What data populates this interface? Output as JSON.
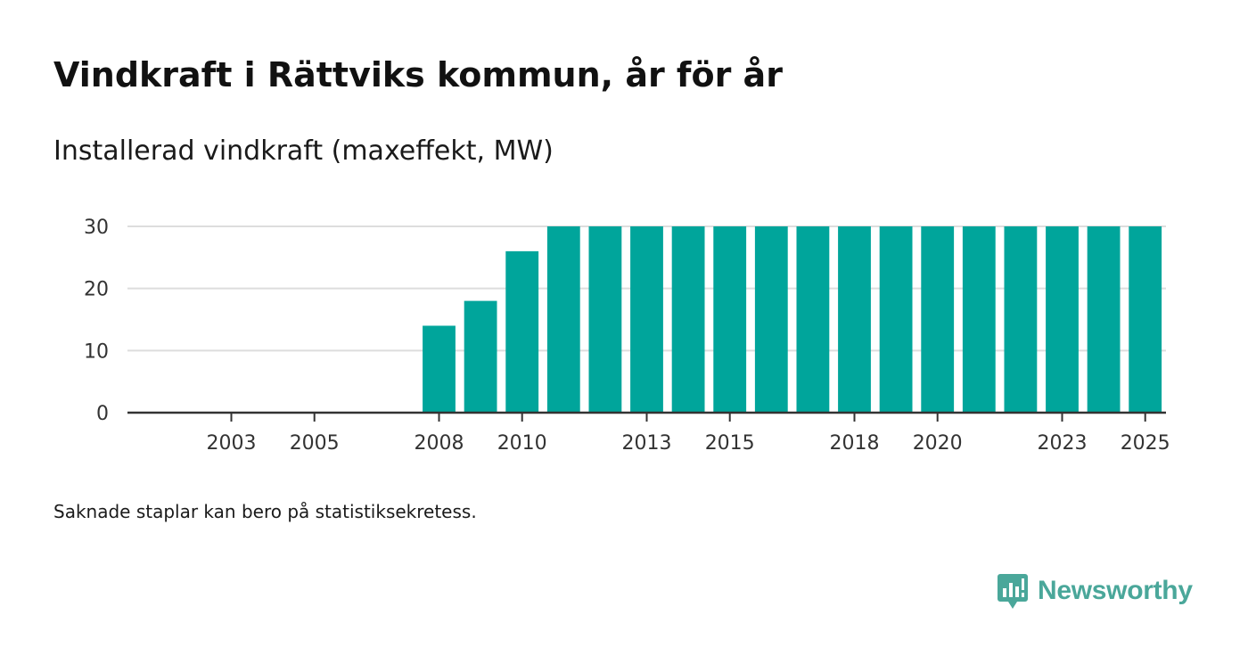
{
  "header": {
    "title": "Vindkraft i Rättviks kommun, år för år",
    "subtitle": "Installerad vindkraft (maxeffekt, MW)"
  },
  "footer": {
    "note": "Saknade staplar kan bero på statistiksekretess.",
    "brand": "Newsworthy",
    "logo_icon": "newsworthy-logo-icon"
  },
  "colors": {
    "bar": "#00a59b",
    "grid": "#dddddd",
    "axis": "#333333",
    "brand": "#4aa79a"
  },
  "chart_data": {
    "type": "bar",
    "title": "Vindkraft i Rättviks kommun, år för år",
    "subtitle": "Installerad vindkraft (maxeffekt, MW)",
    "xlabel": "",
    "ylabel": "Installerad vindkraft (maxeffekt, MW)",
    "categories": [
      "2001",
      "2002",
      "2003",
      "2004",
      "2005",
      "2006",
      "2007",
      "2008",
      "2009",
      "2010",
      "2011",
      "2012",
      "2013",
      "2014",
      "2015",
      "2016",
      "2017",
      "2018",
      "2019",
      "2020",
      "2021",
      "2022",
      "2023",
      "2024",
      "2025"
    ],
    "values": [
      null,
      null,
      null,
      null,
      null,
      null,
      null,
      14,
      18,
      26,
      30,
      30,
      30,
      30,
      30,
      30,
      30,
      30,
      30,
      30,
      30,
      30,
      30,
      30,
      30
    ],
    "x_tick_labels": [
      "2003",
      "2005",
      "2008",
      "2010",
      "2013",
      "2015",
      "2018",
      "2020",
      "2023",
      "2025"
    ],
    "y_ticks": [
      0,
      10,
      20,
      30
    ],
    "ylim": [
      0,
      30
    ],
    "grid": true,
    "legend": "none"
  }
}
